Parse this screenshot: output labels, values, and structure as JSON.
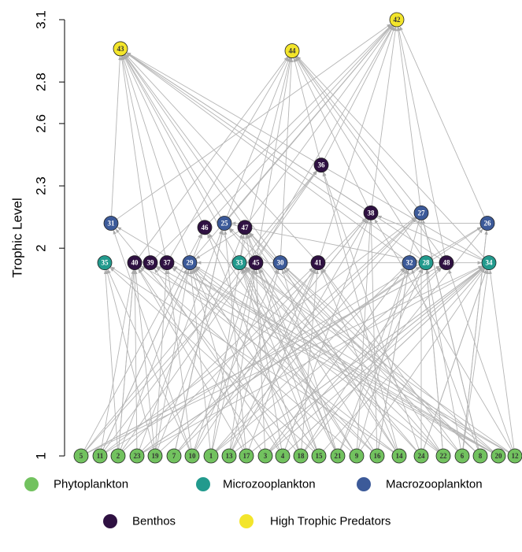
{
  "axis": {
    "label": "Trophic Level",
    "ylim": [
      1,
      3.1
    ],
    "yticks": [
      1,
      2,
      2.3,
      2.6,
      2.8,
      3.1
    ]
  },
  "groups": [
    {
      "name": "Phytoplankton",
      "color": "#72c25f"
    },
    {
      "name": "Microzooplankton",
      "color": "#229a8d"
    },
    {
      "name": "Macrozooplankton",
      "color": "#3c5a99"
    },
    {
      "name": "Benthos",
      "color": "#2f1142"
    },
    {
      "name": "High Trophic Predators",
      "color": "#f3e52b"
    }
  ],
  "nodes": [
    {
      "label": "5",
      "group": 0,
      "level": 1
    },
    {
      "label": "11",
      "group": 0,
      "level": 1
    },
    {
      "label": "2",
      "group": 0,
      "level": 1
    },
    {
      "label": "23",
      "group": 0,
      "level": 1
    },
    {
      "label": "19",
      "group": 0,
      "level": 1
    },
    {
      "label": "7",
      "group": 0,
      "level": 1
    },
    {
      "label": "10",
      "group": 0,
      "level": 1
    },
    {
      "label": "1",
      "group": 0,
      "level": 1
    },
    {
      "label": "13",
      "group": 0,
      "level": 1
    },
    {
      "label": "17",
      "group": 0,
      "level": 1
    },
    {
      "label": "3",
      "group": 0,
      "level": 1
    },
    {
      "label": "4",
      "group": 0,
      "level": 1
    },
    {
      "label": "18",
      "group": 0,
      "level": 1
    },
    {
      "label": "15",
      "group": 0,
      "level": 1
    },
    {
      "label": "21",
      "group": 0,
      "level": 1
    },
    {
      "label": "9",
      "group": 0,
      "level": 1
    },
    {
      "label": "16",
      "group": 0,
      "level": 1
    },
    {
      "label": "14",
      "group": 0,
      "level": 1
    },
    {
      "label": "24",
      "group": 0,
      "level": 1
    },
    {
      "label": "22",
      "group": 0,
      "level": 1
    },
    {
      "label": "6",
      "group": 0,
      "level": 1
    },
    {
      "label": "8",
      "group": 0,
      "level": 1
    },
    {
      "label": "20",
      "group": 0,
      "level": 1
    },
    {
      "label": "12",
      "group": 0,
      "level": 1
    },
    {
      "label": "35",
      "group": 1,
      "level": 1.93
    },
    {
      "label": "40",
      "group": 3,
      "level": 1.93
    },
    {
      "label": "39",
      "group": 3,
      "level": 1.93
    },
    {
      "label": "37",
      "group": 3,
      "level": 1.93
    },
    {
      "label": "29",
      "group": 2,
      "level": 1.93
    },
    {
      "label": "33",
      "group": 1,
      "level": 1.93
    },
    {
      "label": "45",
      "group": 3,
      "level": 1.93
    },
    {
      "label": "30",
      "group": 2,
      "level": 1.93
    },
    {
      "label": "41",
      "group": 3,
      "level": 1.93
    },
    {
      "label": "32",
      "group": 2,
      "level": 1.93
    },
    {
      "label": "28",
      "group": 1,
      "level": 1.93
    },
    {
      "label": "48",
      "group": 3,
      "level": 1.93
    },
    {
      "label": "34",
      "group": 1,
      "level": 1.93
    },
    {
      "label": "31",
      "group": 2,
      "level": 2.12
    },
    {
      "label": "46",
      "group": 3,
      "level": 2.1
    },
    {
      "label": "25",
      "group": 2,
      "level": 2.12
    },
    {
      "label": "47",
      "group": 3,
      "level": 2.1
    },
    {
      "label": "38",
      "group": 3,
      "level": 2.17
    },
    {
      "label": "27",
      "group": 2,
      "level": 2.17
    },
    {
      "label": "26",
      "group": 2,
      "level": 2.12
    },
    {
      "label": "36",
      "group": 3,
      "level": 2.4
    },
    {
      "label": "43",
      "group": 4,
      "level": 2.96
    },
    {
      "label": "44",
      "group": 4,
      "level": 2.95
    },
    {
      "label": "42",
      "group": 4,
      "level": 3.1
    }
  ]
}
